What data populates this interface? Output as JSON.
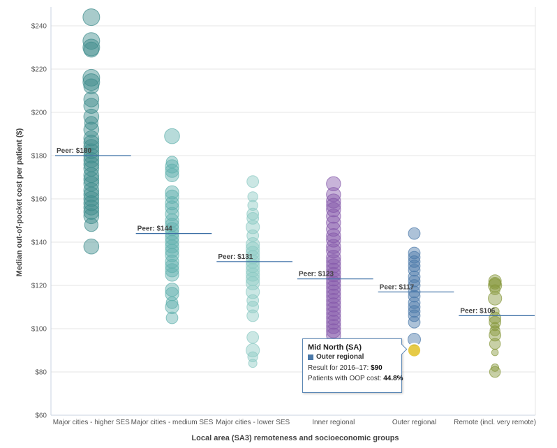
{
  "chart_data": {
    "type": "scatter",
    "title": "",
    "xlabel": "Local area (SA3) remoteness and socioeconomic groups",
    "ylabel": "Median out-of-pocket cost per patient ($)",
    "ylim": [
      60,
      245
    ],
    "yticks": [
      60,
      80,
      100,
      120,
      140,
      160,
      180,
      200,
      220,
      240
    ],
    "ytick_labels": [
      "$60",
      "$80",
      "$100",
      "$120",
      "$140",
      "$160",
      "$180",
      "$200",
      "$220",
      "$240"
    ],
    "grid": true,
    "categories": [
      {
        "name": "Major cities - higher SES",
        "color": "#3d8c8c",
        "peer": 180,
        "peer_label": "Peer: $180",
        "values": [
          244,
          233,
          230,
          229,
          216,
          214,
          212,
          206,
          203,
          198,
          195,
          192,
          188,
          186,
          184,
          182,
          180,
          178,
          176,
          174,
          171,
          169,
          167,
          164,
          162,
          160,
          158,
          156,
          154,
          152,
          148,
          138
        ],
        "sizes": [
          1.0,
          1.0,
          1.0,
          0.9,
          1.0,
          1.0,
          0.9,
          0.9,
          0.9,
          0.9,
          0.8,
          0.9,
          0.9,
          0.9,
          0.9,
          0.9,
          0.9,
          0.9,
          0.9,
          0.9,
          0.9,
          0.9,
          0.9,
          0.9,
          0.9,
          0.9,
          0.9,
          0.9,
          0.9,
          0.9,
          0.8,
          0.9
        ]
      },
      {
        "name": "Major cities - medium SES",
        "color": "#5fb0ac",
        "peer": 144,
        "peer_label": "Peer: $144",
        "values": [
          189,
          177,
          175,
          173,
          171,
          163,
          161,
          158,
          156,
          153,
          150,
          148,
          146,
          144,
          142,
          140,
          138,
          136,
          134,
          131,
          129,
          127,
          125,
          118,
          116,
          112,
          110,
          105
        ],
        "sizes": [
          0.9,
          0.7,
          0.8,
          0.8,
          0.8,
          0.8,
          0.8,
          0.8,
          0.8,
          0.8,
          0.8,
          0.8,
          0.8,
          0.8,
          0.8,
          0.8,
          0.8,
          0.8,
          0.8,
          0.8,
          0.8,
          0.8,
          0.8,
          0.8,
          0.8,
          0.7,
          0.8,
          0.7
        ]
      },
      {
        "name": "Major cities - lower SES",
        "color": "#8cc9c3",
        "peer": 131,
        "peer_label": "Peer: $131",
        "values": [
          168,
          161,
          157,
          153,
          151,
          147,
          143,
          139,
          137,
          135,
          133,
          131,
          129,
          127,
          125,
          123,
          121,
          117,
          113,
          110,
          106,
          96,
          90,
          87,
          84
        ],
        "sizes": [
          0.7,
          0.6,
          0.6,
          0.7,
          0.7,
          0.8,
          0.7,
          0.8,
          0.8,
          0.8,
          0.8,
          0.8,
          0.8,
          0.8,
          0.8,
          0.8,
          0.8,
          0.8,
          0.7,
          0.7,
          0.7,
          0.7,
          0.8,
          0.6,
          0.5
        ]
      },
      {
        "name": "Inner regional",
        "color": "#8458aa",
        "peer": 123,
        "peer_label": "Peer: $123",
        "values": [
          167,
          162,
          159,
          157,
          155,
          152,
          149,
          146,
          143,
          141,
          138,
          136,
          133,
          131,
          129,
          127,
          125,
          123,
          121,
          119,
          117,
          115,
          113,
          111,
          109,
          107,
          105,
          103,
          101,
          99,
          97
        ],
        "sizes": [
          0.85,
          0.85,
          0.85,
          0.85,
          0.85,
          0.85,
          0.85,
          0.85,
          0.85,
          0.85,
          0.85,
          0.85,
          0.85,
          0.85,
          0.85,
          0.85,
          0.85,
          0.85,
          0.85,
          0.85,
          0.85,
          0.85,
          0.85,
          0.85,
          0.85,
          0.85,
          0.85,
          0.85,
          0.85,
          0.85,
          0.85
        ]
      },
      {
        "name": "Outer regional",
        "color": "#4a78a8",
        "peer": 117,
        "peer_label": "Peer: $117",
        "values": [
          144,
          135,
          133,
          131,
          129,
          127,
          124,
          122,
          120,
          117,
          115,
          112,
          110,
          108,
          106,
          103,
          95
        ],
        "sizes": [
          0.7,
          0.7,
          0.7,
          0.7,
          0.7,
          0.7,
          0.7,
          0.7,
          0.7,
          0.7,
          0.7,
          0.7,
          0.7,
          0.7,
          0.7,
          0.7,
          0.75
        ],
        "highlight": {
          "value": 90,
          "color": "#e3c432",
          "size": 0.8
        }
      },
      {
        "name": "Remote (incl. very remote)",
        "color": "#86973a",
        "peer": 106,
        "peer_label": "Peer: $106",
        "values": [
          122,
          121,
          120,
          118,
          114,
          108,
          105,
          103,
          101,
          99,
          97,
          93,
          89,
          82,
          80
        ],
        "sizes": [
          0.75,
          0.7,
          0.8,
          0.6,
          0.8,
          0.5,
          0.7,
          0.7,
          0.5,
          0.6,
          0.7,
          0.65,
          0.4,
          0.45,
          0.65
        ]
      }
    ]
  },
  "tooltip": {
    "title": "Mid North (SA)",
    "category": "Outer regional",
    "result_label": "Result for 2016–17:",
    "result_value": "$90",
    "oop_label": "Patients with OOP cost:",
    "oop_value": "44.8%"
  }
}
